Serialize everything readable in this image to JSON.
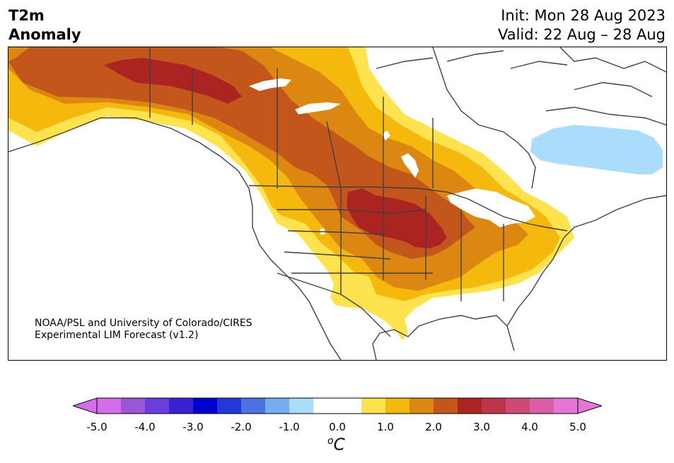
{
  "title": {
    "line1": "T2m",
    "line2": "Anomaly"
  },
  "header": {
    "init": "Init: Mon 28 Aug 2023",
    "valid": "Valid: 22 Aug – 28 Aug"
  },
  "credit": {
    "line1": "NOAA/PSL and University of Colorado/CIRES",
    "line2": "Experimental LIM Forecast (v1.2)"
  },
  "colorbar": {
    "colors": [
      "#d46ee8",
      "#9a55db",
      "#6a3ddd",
      "#3a22d2",
      "#0000cc",
      "#2538d8",
      "#4d71e0",
      "#76adf0",
      "#acdcfb",
      "#ffffff",
      "#ffffff",
      "#fee34f",
      "#f4b90c",
      "#dd8713",
      "#c3561a",
      "#ac2422",
      "#bd3549",
      "#cd4a75",
      "#da5da6",
      "#e576d7"
    ],
    "under_color": "#d46ee8",
    "over_color": "#e576d7",
    "ticks": [
      "-5.0",
      "-4.0",
      "-3.0",
      "-2.0",
      "-1.0",
      "0.0",
      "1.0",
      "2.0",
      "3.0",
      "4.0",
      "5.0"
    ],
    "unit_base": "C",
    "unit_sup": "o"
  },
  "map": {
    "region": "North America",
    "land_outline_color": "#404040",
    "lake_color": "#ffffff"
  }
}
